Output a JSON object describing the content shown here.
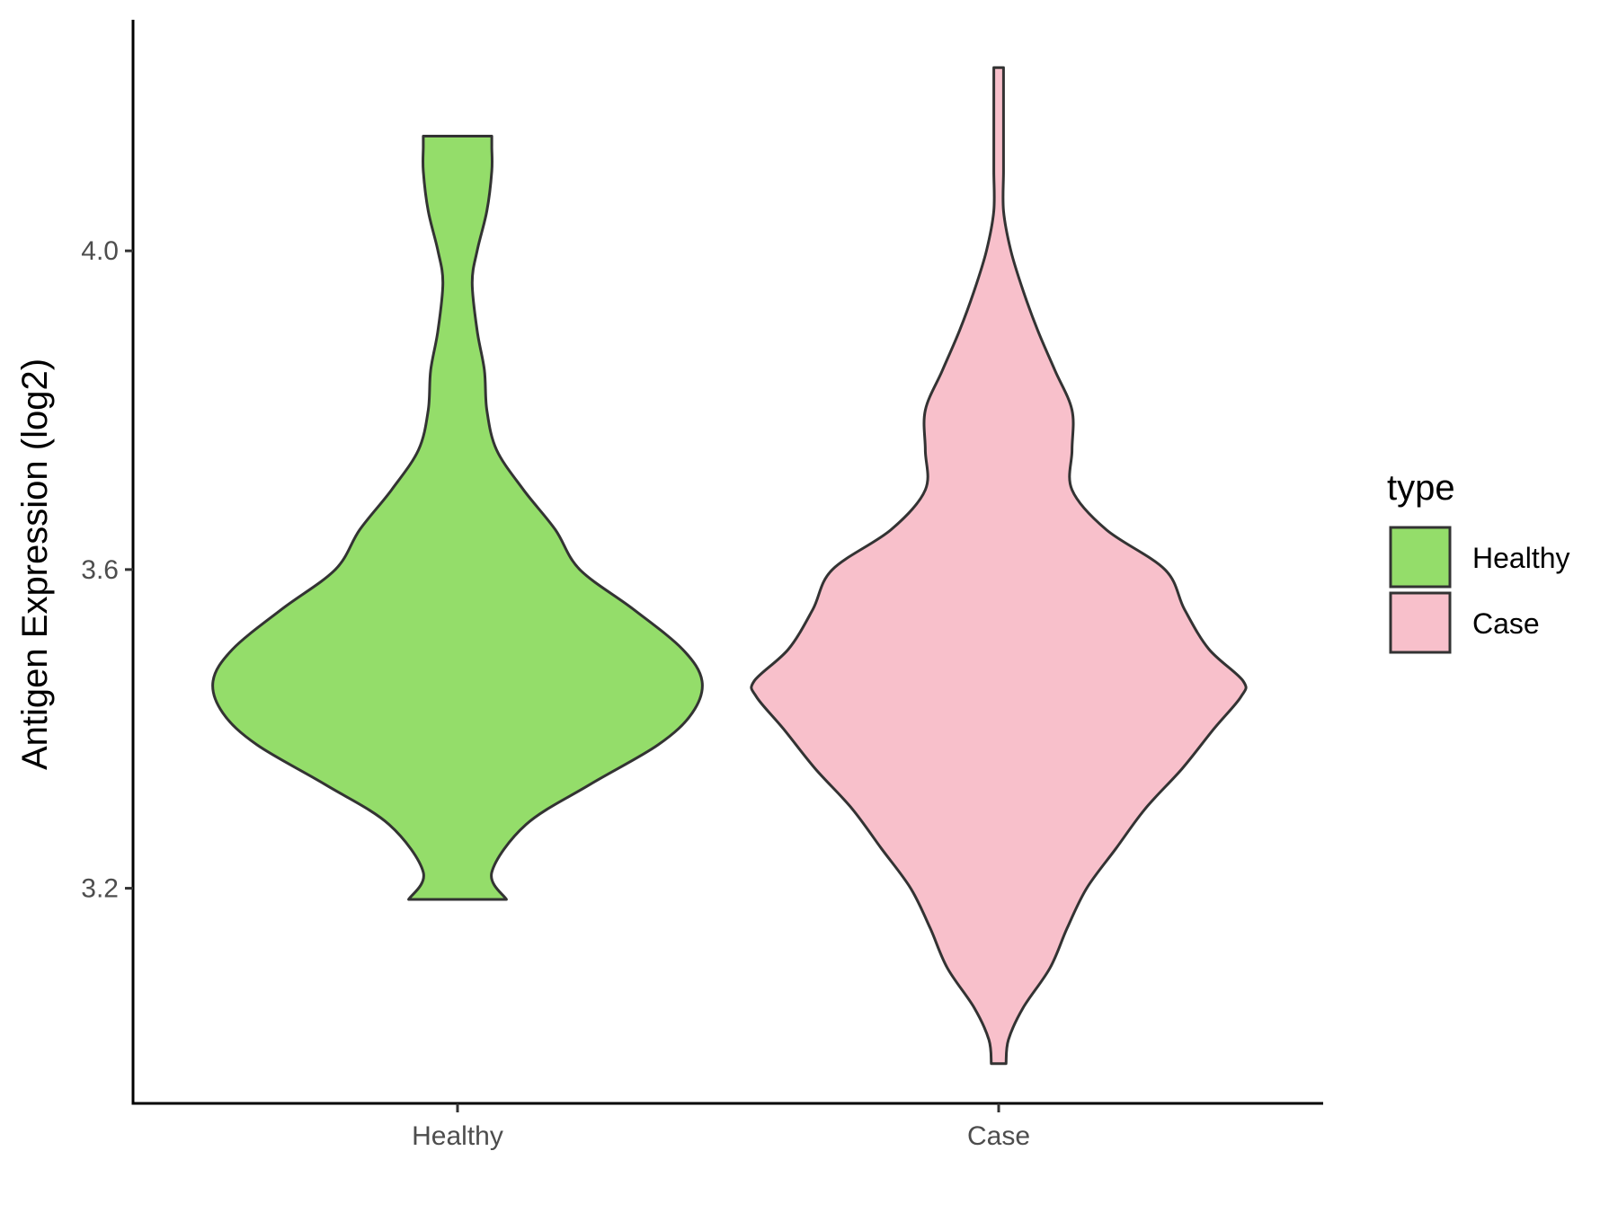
{
  "chart_data": {
    "type": "violin",
    "ylabel": "Antigen Expression (log2)",
    "xlabel": "",
    "y_ticks": [
      "3.2",
      "3.6",
      "4.0"
    ],
    "ylim": [
      2.93,
      4.29
    ],
    "grid": false,
    "legend": {
      "title": "type",
      "position": "right",
      "entries": [
        {
          "label": "Healthy",
          "color": "#94dd6a"
        },
        {
          "label": "Case",
          "color": "#f8c0cb"
        }
      ]
    },
    "categories": [
      "Healthy",
      "Case"
    ],
    "series": [
      {
        "name": "Healthy",
        "color": "#94dd6a",
        "y_min": 3.186,
        "y_max": 4.144,
        "density": [
          [
            3.186,
            0.2
          ],
          [
            3.22,
            0.14
          ],
          [
            3.28,
            0.28
          ],
          [
            3.33,
            0.54
          ],
          [
            3.38,
            0.82
          ],
          [
            3.42,
            0.96
          ],
          [
            3.46,
            1.0
          ],
          [
            3.5,
            0.92
          ],
          [
            3.55,
            0.72
          ],
          [
            3.6,
            0.5
          ],
          [
            3.65,
            0.4
          ],
          [
            3.7,
            0.27
          ],
          [
            3.75,
            0.16
          ],
          [
            3.8,
            0.12
          ],
          [
            3.85,
            0.11
          ],
          [
            3.9,
            0.08
          ],
          [
            3.96,
            0.06
          ],
          [
            4.0,
            0.08
          ],
          [
            4.05,
            0.12
          ],
          [
            4.1,
            0.14
          ],
          [
            4.13,
            0.14
          ],
          [
            4.144,
            0.14
          ]
        ]
      },
      {
        "name": "Case",
        "color": "#f8c0cb",
        "y_min": 2.98,
        "y_max": 4.23,
        "density": [
          [
            2.98,
            0.03
          ],
          [
            3.01,
            0.04
          ],
          [
            3.05,
            0.1
          ],
          [
            3.1,
            0.21
          ],
          [
            3.15,
            0.28
          ],
          [
            3.2,
            0.36
          ],
          [
            3.25,
            0.48
          ],
          [
            3.3,
            0.6
          ],
          [
            3.35,
            0.75
          ],
          [
            3.4,
            0.88
          ],
          [
            3.44,
            0.99
          ],
          [
            3.46,
            1.0
          ],
          [
            3.5,
            0.86
          ],
          [
            3.55,
            0.76
          ],
          [
            3.6,
            0.68
          ],
          [
            3.65,
            0.44
          ],
          [
            3.7,
            0.3
          ],
          [
            3.75,
            0.3
          ],
          [
            3.8,
            0.3
          ],
          [
            3.85,
            0.23
          ],
          [
            3.9,
            0.16
          ],
          [
            3.95,
            0.1
          ],
          [
            4.0,
            0.05
          ],
          [
            4.05,
            0.02
          ],
          [
            4.1,
            0.02
          ],
          [
            4.15,
            0.02
          ],
          [
            4.2,
            0.02
          ],
          [
            4.23,
            0.02
          ]
        ]
      }
    ]
  }
}
